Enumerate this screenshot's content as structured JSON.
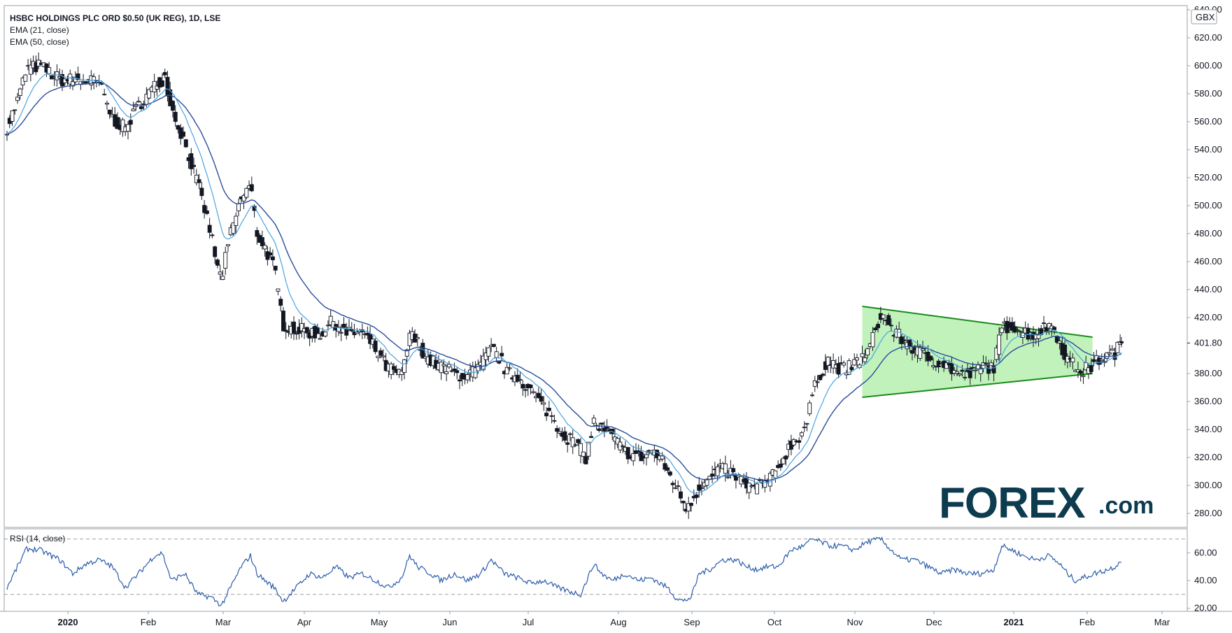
{
  "header": {
    "symbol_line": "HSBC HOLDINGS PLC ORD $0.50 (UK REG), 1D, LSE",
    "ema21_label": "EMA (21, close)",
    "ema50_label": "EMA (50, close)",
    "currency_badge": "GBX",
    "last_price_label": "401.80"
  },
  "rsi_panel": {
    "label": "RSI (14, close)"
  },
  "logo": {
    "word": "FOREX",
    "suffix": ".com",
    "brand_color": "#0d3b4f",
    "accent_color": "#2bb24c"
  },
  "colors": {
    "ema21": "#4aa3df",
    "ema50": "#2a4e9a",
    "candle": "#131722",
    "triangle_fill": "#b6f0b0",
    "triangle_stroke": "#1a8a1a",
    "rsi_line": "#2a5caa"
  },
  "chart_data": [
    {
      "type": "candlestick",
      "title": "HSBC HOLDINGS PLC ORD $0.50 (UK REG), 1D, LSE",
      "ylim": [
        270,
        640
      ],
      "y_ticks": [
        280,
        300,
        320,
        340,
        360,
        380,
        400,
        420,
        440,
        460,
        480,
        500,
        520,
        540,
        560,
        580,
        600,
        620,
        640
      ],
      "y_tick_labels": [
        "280.00",
        "300.00",
        "320.00",
        "340.00",
        "360.00",
        "380.00",
        "401.80",
        "420.00",
        "440.00",
        "460.00",
        "480.00",
        "500.00",
        "520.00",
        "540.00",
        "560.00",
        "580.00",
        "600.00",
        "620.00",
        "640.00"
      ],
      "x_ticks": [
        "2020",
        "Feb",
        "Mar",
        "Apr",
        "May",
        "Jun",
        "Jul",
        "Aug",
        "Sep",
        "Oct",
        "Nov",
        "Dec",
        "2021",
        "Feb",
        "Mar"
      ],
      "x_tick_bold": [
        true,
        false,
        false,
        false,
        false,
        false,
        false,
        false,
        false,
        false,
        false,
        false,
        true,
        false,
        false
      ],
      "close_keypoints": [
        [
          0,
          556
        ],
        [
          8,
          575
        ],
        [
          15,
          598
        ],
        [
          25,
          600
        ],
        [
          40,
          590
        ],
        [
          55,
          590
        ],
        [
          70,
          588
        ],
        [
          80,
          562
        ],
        [
          90,
          555
        ],
        [
          100,
          572
        ],
        [
          112,
          585
        ],
        [
          120,
          592
        ],
        [
          125,
          570
        ],
        [
          135,
          545
        ],
        [
          145,
          515
        ],
        [
          155,
          480
        ],
        [
          160,
          455
        ],
        [
          163,
          448
        ],
        [
          170,
          480
        ],
        [
          178,
          505
        ],
        [
          185,
          515
        ],
        [
          190,
          480
        ],
        [
          196,
          470
        ],
        [
          203,
          455
        ],
        [
          210,
          415
        ],
        [
          218,
          412
        ],
        [
          228,
          410
        ],
        [
          238,
          408
        ],
        [
          248,
          418
        ],
        [
          258,
          408
        ],
        [
          268,
          410
        ],
        [
          278,
          400
        ],
        [
          288,
          385
        ],
        [
          300,
          378
        ],
        [
          306,
          408
        ],
        [
          312,
          402
        ],
        [
          320,
          390
        ],
        [
          330,
          385
        ],
        [
          340,
          380
        ],
        [
          350,
          378
        ],
        [
          360,
          385
        ],
        [
          368,
          398
        ],
        [
          375,
          390
        ],
        [
          380,
          380
        ],
        [
          388,
          378
        ],
        [
          396,
          370
        ],
        [
          404,
          360
        ],
        [
          412,
          352
        ],
        [
          420,
          340
        ],
        [
          425,
          335
        ],
        [
          432,
          330
        ],
        [
          440,
          320
        ],
        [
          446,
          345
        ],
        [
          452,
          340
        ],
        [
          460,
          335
        ],
        [
          468,
          325
        ],
        [
          476,
          322
        ],
        [
          484,
          320
        ],
        [
          490,
          325
        ],
        [
          496,
          320
        ],
        [
          502,
          310
        ],
        [
          508,
          300
        ],
        [
          512,
          292
        ],
        [
          516,
          285
        ],
        [
          522,
          292
        ],
        [
          528,
          302
        ],
        [
          534,
          304
        ],
        [
          540,
          312
        ],
        [
          548,
          310
        ],
        [
          556,
          305
        ],
        [
          562,
          300
        ],
        [
          568,
          298
        ],
        [
          576,
          302
        ],
        [
          584,
          308
        ],
        [
          590,
          320
        ],
        [
          596,
          330
        ],
        [
          602,
          335
        ],
        [
          608,
          345
        ],
        [
          612,
          365
        ],
        [
          618,
          380
        ],
        [
          624,
          390
        ],
        [
          630,
          385
        ],
        [
          636,
          383
        ],
        [
          642,
          385
        ],
        [
          648,
          390
        ],
        [
          654,
          395
        ],
        [
          660,
          410
        ],
        [
          664,
          422
        ],
        [
          668,
          418
        ],
        [
          674,
          410
        ],
        [
          680,
          405
        ],
        [
          686,
          400
        ],
        [
          694,
          395
        ],
        [
          702,
          390
        ],
        [
          710,
          388
        ],
        [
          718,
          383
        ],
        [
          726,
          378
        ],
        [
          734,
          380
        ],
        [
          742,
          385
        ],
        [
          750,
          385
        ],
        [
          756,
          412
        ],
        [
          764,
          415
        ],
        [
          772,
          410
        ],
        [
          780,
          408
        ],
        [
          788,
          412
        ],
        [
          795,
          415
        ],
        [
          800,
          402
        ],
        [
          806,
          390
        ],
        [
          812,
          385
        ],
        [
          818,
          382
        ],
        [
          824,
          385
        ],
        [
          830,
          390
        ],
        [
          836,
          392
        ],
        [
          842,
          395
        ],
        [
          847,
          401.8
        ]
      ],
      "series": [
        {
          "name": "EMA (21, close)"
        },
        {
          "name": "EMA (50, close)"
        }
      ],
      "pattern": {
        "type": "triangle",
        "upper_line": [
          [
            650,
            428
          ],
          [
            825,
            406
          ]
        ],
        "lower_line": [
          [
            650,
            363
          ],
          [
            825,
            380
          ]
        ]
      }
    },
    {
      "type": "line",
      "title": "RSI (14, close)",
      "ylim": [
        20,
        72
      ],
      "y_ticks": [
        20,
        40,
        60
      ],
      "y_tick_labels": [
        "20.00",
        "40.00",
        "60.00"
      ],
      "reference_lines": [
        30,
        70
      ],
      "keypoints": [
        [
          0,
          35
        ],
        [
          8,
          50
        ],
        [
          15,
          63
        ],
        [
          25,
          62
        ],
        [
          40,
          55
        ],
        [
          50,
          45
        ],
        [
          60,
          52
        ],
        [
          70,
          55
        ],
        [
          80,
          50
        ],
        [
          90,
          35
        ],
        [
          100,
          45
        ],
        [
          112,
          58
        ],
        [
          118,
          60
        ],
        [
          125,
          40
        ],
        [
          135,
          45
        ],
        [
          145,
          30
        ],
        [
          155,
          28
        ],
        [
          163,
          22
        ],
        [
          170,
          35
        ],
        [
          178,
          50
        ],
        [
          185,
          58
        ],
        [
          190,
          45
        ],
        [
          196,
          40
        ],
        [
          203,
          35
        ],
        [
          210,
          25
        ],
        [
          220,
          35
        ],
        [
          230,
          45
        ],
        [
          240,
          42
        ],
        [
          250,
          50
        ],
        [
          260,
          42
        ],
        [
          270,
          45
        ],
        [
          280,
          40
        ],
        [
          290,
          35
        ],
        [
          300,
          42
        ],
        [
          306,
          58
        ],
        [
          312,
          50
        ],
        [
          322,
          45
        ],
        [
          330,
          40
        ],
        [
          340,
          45
        ],
        [
          350,
          40
        ],
        [
          360,
          45
        ],
        [
          368,
          55
        ],
        [
          378,
          45
        ],
        [
          388,
          42
        ],
        [
          398,
          38
        ],
        [
          408,
          40
        ],
        [
          418,
          35
        ],
        [
          428,
          32
        ],
        [
          436,
          30
        ],
        [
          446,
          52
        ],
        [
          452,
          45
        ],
        [
          460,
          40
        ],
        [
          470,
          45
        ],
        [
          480,
          40
        ],
        [
          490,
          42
        ],
        [
          496,
          38
        ],
        [
          502,
          35
        ],
        [
          508,
          28
        ],
        [
          514,
          25
        ],
        [
          520,
          28
        ],
        [
          526,
          45
        ],
        [
          534,
          48
        ],
        [
          544,
          55
        ],
        [
          554,
          55
        ],
        [
          562,
          50
        ],
        [
          570,
          48
        ],
        [
          578,
          50
        ],
        [
          586,
          50
        ],
        [
          596,
          62
        ],
        [
          606,
          65
        ],
        [
          612,
          70
        ],
        [
          618,
          68
        ],
        [
          626,
          65
        ],
        [
          634,
          65
        ],
        [
          644,
          62
        ],
        [
          654,
          68
        ],
        [
          664,
          70
        ],
        [
          672,
          62
        ],
        [
          680,
          55
        ],
        [
          690,
          55
        ],
        [
          700,
          50
        ],
        [
          710,
          45
        ],
        [
          720,
          48
        ],
        [
          730,
          45
        ],
        [
          740,
          45
        ],
        [
          750,
          48
        ],
        [
          756,
          65
        ],
        [
          764,
          62
        ],
        [
          772,
          58
        ],
        [
          782,
          55
        ],
        [
          792,
          58
        ],
        [
          800,
          52
        ],
        [
          806,
          45
        ],
        [
          812,
          40
        ],
        [
          818,
          42
        ],
        [
          826,
          45
        ],
        [
          834,
          47
        ],
        [
          842,
          50
        ],
        [
          847,
          55
        ]
      ]
    }
  ]
}
